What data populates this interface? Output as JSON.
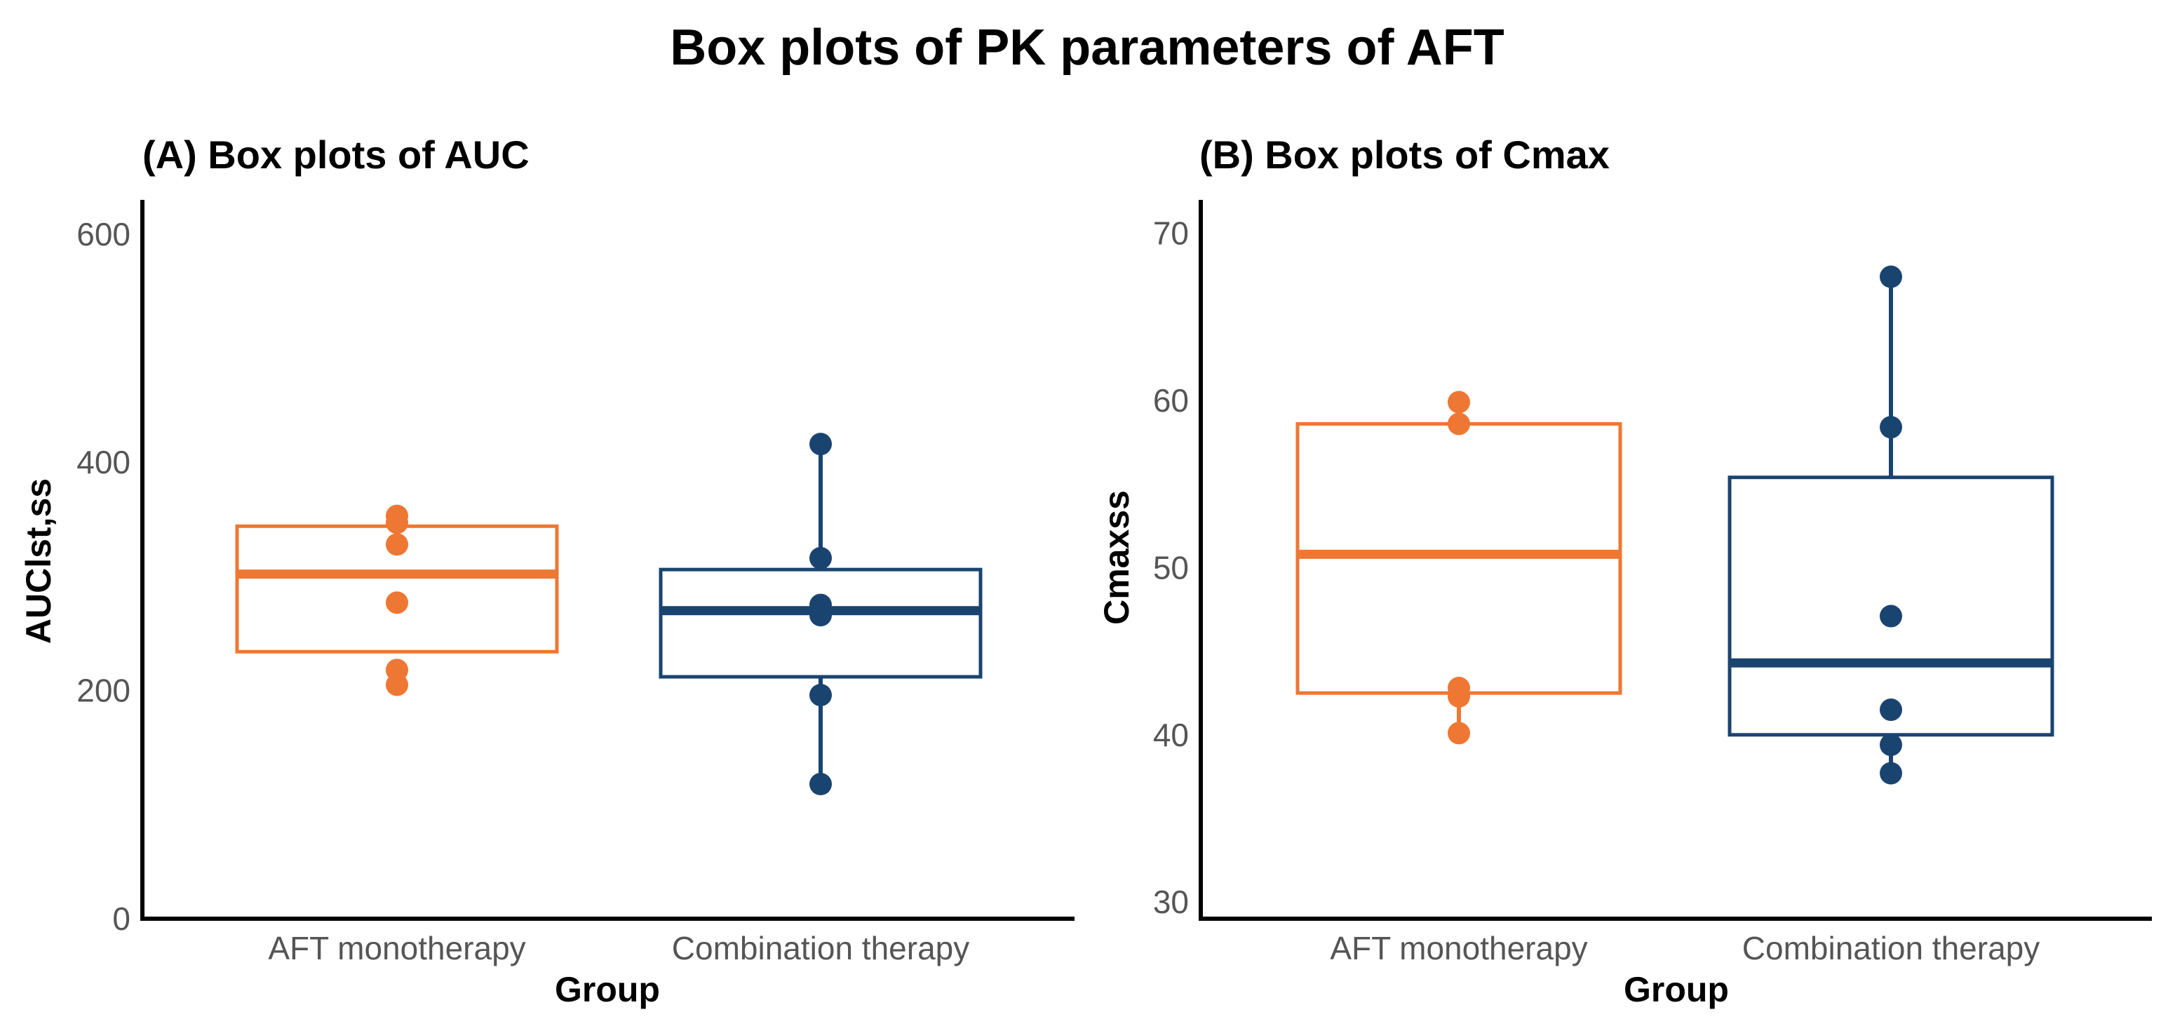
{
  "title": "Box plots of PK parameters of AFT",
  "colors": {
    "mono": "#EE7733",
    "combo": "#1A4470",
    "axis": "#000000",
    "tick_text": "#555555"
  },
  "chart_data": [
    {
      "type": "box",
      "panel_title": "(A) Box plots of AUC",
      "xlabel": "Group",
      "ylabel": "AUClst,ss",
      "categories": [
        "AFT monotherapy",
        "Combination therapy"
      ],
      "ylim": [
        0,
        630
      ],
      "yticks": [
        0,
        200,
        400,
        600
      ],
      "ytick_labels": [
        "0",
        "200",
        "400",
        "600"
      ],
      "boxes": [
        {
          "group": "AFT monotherapy",
          "q1": 234,
          "median": 302,
          "q3": 344,
          "whisker_low": 234,
          "whisker_high": 344,
          "points": [
            205,
            218,
            277,
            328,
            347,
            353
          ]
        },
        {
          "group": "Combination therapy",
          "q1": 212,
          "median": 270,
          "q3": 306,
          "whisker_low": 118,
          "whisker_high": 416,
          "points": [
            118,
            196,
            266,
            275,
            316,
            416
          ]
        }
      ]
    },
    {
      "type": "box",
      "panel_title": "(B) Box plots of Cmax",
      "xlabel": "Group",
      "ylabel": "Cmaxss",
      "categories": [
        "AFT monotherapy",
        "Combination therapy"
      ],
      "ylim": [
        29,
        72
      ],
      "yticks": [
        30,
        40,
        50,
        60,
        70
      ],
      "ytick_labels": [
        "30",
        "40",
        "50",
        "60",
        "70"
      ],
      "boxes": [
        {
          "group": "AFT monotherapy",
          "q1": 42.5,
          "median": 50.8,
          "q3": 58.6,
          "whisker_low": 40.1,
          "whisker_high": 59.9,
          "points": [
            40.1,
            42.3,
            42.8,
            58.6,
            59.9
          ]
        },
        {
          "group": "Combination therapy",
          "q1": 40.0,
          "median": 44.3,
          "q3": 55.4,
          "whisker_low": 37.7,
          "whisker_high": 67.4,
          "points": [
            37.7,
            39.4,
            41.5,
            47.1,
            58.4,
            67.4
          ]
        }
      ]
    }
  ]
}
